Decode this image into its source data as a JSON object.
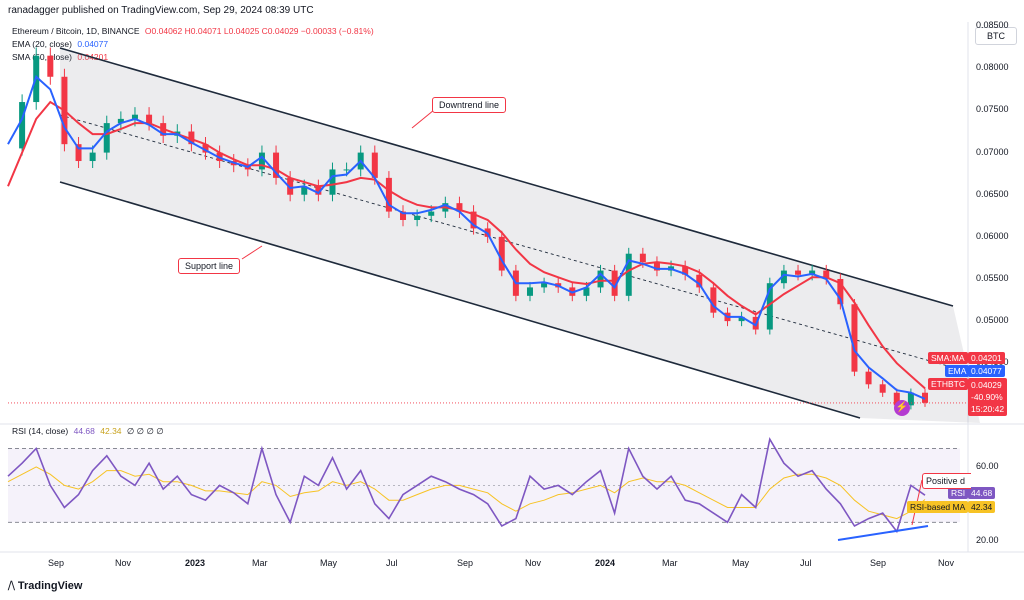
{
  "header": {
    "publisher": "ranadagger published on TradingView.com, Sep 29, 2024 08:39 UTC"
  },
  "legend": {
    "symbol": "Ethereum / Bitcoin, 1D, BINANCE",
    "ohlc": "O0.04062 H0.04071 L0.04025 C0.04029 −0.00033 (−0.81%)",
    "ema_label": "EMA (20, close)",
    "ema_value": "0.04077",
    "sma_label": "SMA (50, close)",
    "sma_value": "0.04201",
    "rsi_label": "RSI (14, close)",
    "rsi_value": "44.68",
    "rsi_ma_value": "42.34",
    "rsi_extra": "∅ ∅ ∅ ∅"
  },
  "currency_button": "BTC",
  "price_axis": {
    "ticks": [
      "0.08500",
      "0.08000",
      "0.07500",
      "0.07000",
      "0.06500",
      "0.06000",
      "0.05500",
      "0.05000",
      "0.04500"
    ],
    "sma_tag_label": "SMA:MA",
    "sma_tag_value": "0.04201",
    "ema_tag_label": "EMA",
    "ema_tag_value": "0.04077",
    "last_tag_label": "ETHBTC",
    "last_tag_value": "0.04029",
    "last_change": "-40.90%",
    "countdown": "15:20:42"
  },
  "rsi_axis": {
    "ticks": [
      "60.00",
      "20.00"
    ],
    "rsi_tag_label": "RSI",
    "rsi_tag_value": "44.68",
    "ma_tag_label": "RSI-based MA",
    "ma_tag_value": "42.34"
  },
  "time_axis": [
    "Sep",
    "Nov",
    "2023",
    "Mar",
    "May",
    "Jul",
    "Sep",
    "Nov",
    "2024",
    "Mar",
    "May",
    "Jul",
    "Sep",
    "Nov"
  ],
  "annotations": {
    "downtrend": "Downtrend line",
    "support": "Support line",
    "positive": "Positive d"
  },
  "watermark": "TradingView",
  "colors": {
    "up": "#089981",
    "down": "#f23645",
    "ema": "#2962ff",
    "sma": "#f23645",
    "rsi": "#7e57c2",
    "rsi_ma": "#f7c325",
    "channel": "#1e2a3b"
  },
  "chart_data": {
    "type": "line",
    "title": "Ethereum / Bitcoin, 1D, BINANCE",
    "x_labels": [
      "Sep",
      "Nov",
      "2023",
      "Mar",
      "May",
      "Jul",
      "Sep",
      "Nov",
      "2024",
      "Mar",
      "May",
      "Jul",
      "Sep",
      "Nov"
    ],
    "ylim": [
      0.0385,
      0.0855
    ],
    "price": [
      0.0705,
      0.076,
      0.0815,
      0.079,
      0.071,
      0.069,
      0.07,
      0.0735,
      0.074,
      0.0745,
      0.0735,
      0.072,
      0.0725,
      0.071,
      0.07,
      0.069,
      0.0685,
      0.068,
      0.07,
      0.067,
      0.065,
      0.066,
      0.065,
      0.068,
      0.068,
      0.07,
      0.067,
      0.063,
      0.062,
      0.0625,
      0.063,
      0.064,
      0.063,
      0.061,
      0.06,
      0.056,
      0.053,
      0.054,
      0.0545,
      0.054,
      0.053,
      0.054,
      0.056,
      0.053,
      0.058,
      0.057,
      0.056,
      0.0565,
      0.0555,
      0.054,
      0.051,
      0.05,
      0.0505,
      0.049,
      0.0545,
      0.056,
      0.0555,
      0.056,
      0.055,
      0.052,
      0.044,
      0.0425,
      0.0415,
      0.04,
      0.0415,
      0.0403
    ],
    "ema": [
      0.071,
      0.074,
      0.079,
      0.0775,
      0.073,
      0.0705,
      0.0705,
      0.0725,
      0.0735,
      0.074,
      0.0733,
      0.0722,
      0.0722,
      0.0712,
      0.0703,
      0.0694,
      0.0688,
      0.0683,
      0.0695,
      0.0676,
      0.0658,
      0.066,
      0.0652,
      0.0672,
      0.0674,
      0.069,
      0.067,
      0.0638,
      0.0628,
      0.0628,
      0.0632,
      0.0638,
      0.063,
      0.0614,
      0.0604,
      0.0572,
      0.0545,
      0.0545,
      0.0546,
      0.0542,
      0.0534,
      0.054,
      0.0556,
      0.054,
      0.0572,
      0.0568,
      0.0562,
      0.0562,
      0.0556,
      0.0544,
      0.0518,
      0.0505,
      0.0505,
      0.0495,
      0.0538,
      0.0555,
      0.0553,
      0.0556,
      0.055,
      0.0526,
      0.0465,
      0.0445,
      0.0432,
      0.0418,
      0.0415,
      0.04077
    ],
    "sma": [
      0.066,
      0.07,
      0.074,
      0.076,
      0.075,
      0.0735,
      0.0722,
      0.0722,
      0.0728,
      0.0735,
      0.0735,
      0.0728,
      0.0722,
      0.0716,
      0.071,
      0.07,
      0.0692,
      0.0685,
      0.0685,
      0.068,
      0.067,
      0.0665,
      0.066,
      0.0662,
      0.0665,
      0.067,
      0.0668,
      0.0655,
      0.0645,
      0.0638,
      0.0635,
      0.0635,
      0.0632,
      0.0627,
      0.062,
      0.0605,
      0.0585,
      0.0568,
      0.0558,
      0.0552,
      0.0546,
      0.0544,
      0.0548,
      0.0548,
      0.056,
      0.0568,
      0.057,
      0.0568,
      0.0565,
      0.0558,
      0.0545,
      0.053,
      0.0518,
      0.0508,
      0.052,
      0.0532,
      0.0542,
      0.0552,
      0.0552,
      0.0545,
      0.0522,
      0.0495,
      0.047,
      0.045,
      0.0435,
      0.04201
    ],
    "rsi": [
      55,
      62,
      70,
      50,
      38,
      45,
      58,
      66,
      55,
      50,
      62,
      48,
      55,
      45,
      42,
      50,
      46,
      40,
      70,
      45,
      30,
      55,
      50,
      65,
      48,
      58,
      40,
      32,
      45,
      50,
      55,
      52,
      48,
      45,
      40,
      28,
      32,
      55,
      48,
      50,
      45,
      52,
      58,
      35,
      70,
      55,
      48,
      55,
      42,
      40,
      35,
      30,
      45,
      38,
      75,
      62,
      55,
      58,
      48,
      40,
      28,
      32,
      35,
      25,
      50,
      44.68
    ],
    "rsi_ma": [
      52,
      56,
      60,
      56,
      50,
      48,
      52,
      58,
      58,
      55,
      56,
      52,
      52,
      50,
      47,
      47,
      46,
      45,
      52,
      50,
      44,
      46,
      47,
      52,
      50,
      52,
      48,
      42,
      42,
      45,
      48,
      50,
      50,
      48,
      46,
      40,
      36,
      40,
      42,
      45,
      46,
      48,
      50,
      46,
      52,
      54,
      52,
      52,
      50,
      46,
      42,
      38,
      38,
      38,
      48,
      54,
      56,
      56,
      54,
      50,
      42,
      36,
      34,
      32,
      36,
      42.34
    ],
    "rsi_ylim": [
      15,
      80
    ]
  }
}
